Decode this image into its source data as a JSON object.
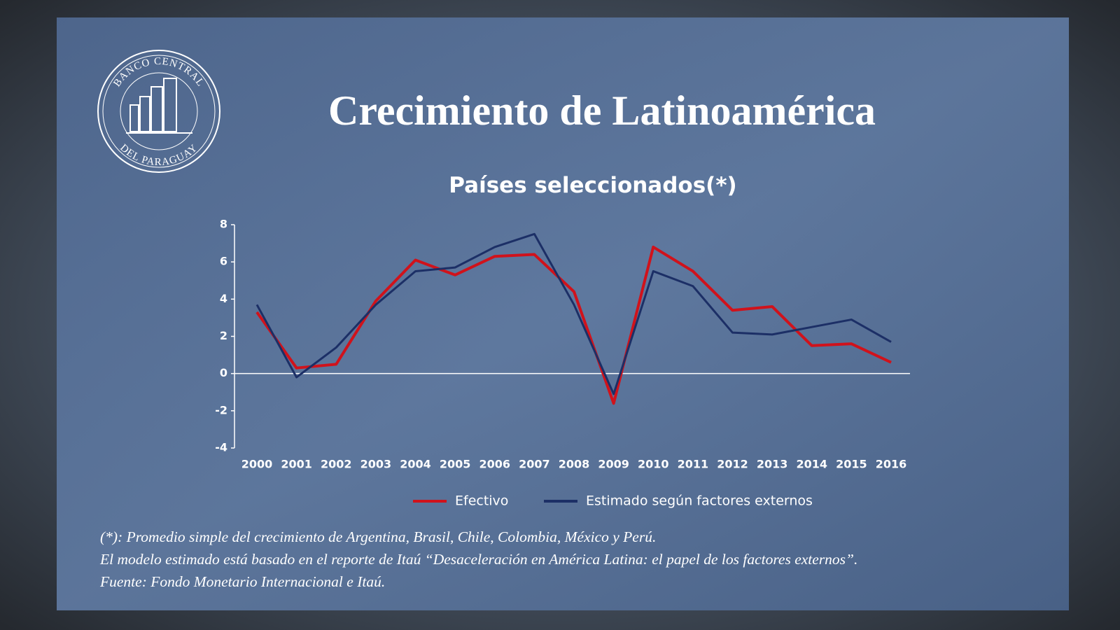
{
  "slide": {
    "logo_top": "BANCO CENTRAL",
    "logo_bottom": "DEL PARAGUAY",
    "title": "Crecimiento de Latinoamérica",
    "notes": [
      "(*): Promedio simple del crecimiento de Argentina, Brasil, Chile, Colombia, México y Perú.",
      "El modelo estimado está basado en el reporte de Itaú “Desaceleración en América Latina: el papel de los factores externos”.",
      "Fuente: Fondo Monetario Internacional e Itaú."
    ]
  },
  "chart_data": {
    "type": "line",
    "title": "Países seleccionados(*)",
    "categories": [
      "2000",
      "2001",
      "2002",
      "2003",
      "2004",
      "2005",
      "2006",
      "2007",
      "2008",
      "2009",
      "2010",
      "2011",
      "2012",
      "2013",
      "2014",
      "2015",
      "2016"
    ],
    "series": [
      {
        "name": "Efectivo",
        "color": "#d0121b",
        "values": [
          3.3,
          0.3,
          0.5,
          3.9,
          6.1,
          5.3,
          6.3,
          6.4,
          4.4,
          -1.6,
          6.8,
          5.5,
          3.4,
          3.6,
          1.5,
          1.6,
          0.6
        ]
      },
      {
        "name": "Estimado según factores externos",
        "color": "#1c2f66",
        "values": [
          3.7,
          -0.2,
          1.4,
          3.7,
          5.5,
          5.7,
          6.8,
          7.5,
          3.7,
          -1.1,
          5.5,
          4.7,
          2.2,
          2.1,
          2.5,
          2.9,
          1.7
        ]
      }
    ],
    "ylim": [
      -4,
      8
    ],
    "yticks": [
      -4,
      -2,
      0,
      2,
      4,
      6,
      8
    ],
    "grid": false,
    "legend": "bottom"
  }
}
